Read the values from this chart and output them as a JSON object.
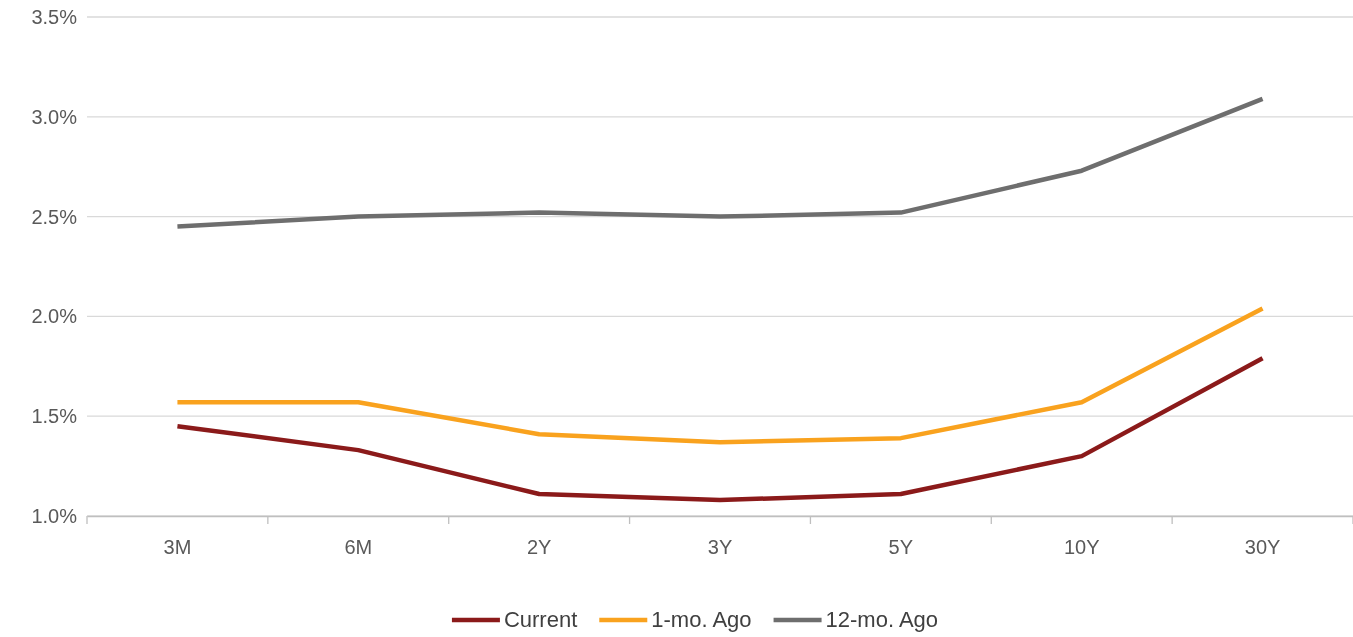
{
  "chart_data": {
    "type": "line",
    "categories": [
      "3M",
      "6M",
      "2Y",
      "3Y",
      "5Y",
      "10Y",
      "30Y"
    ],
    "series": [
      {
        "name": "Current",
        "color": "#8b1a1a",
        "values": [
          1.45,
          1.33,
          1.11,
          1.08,
          1.11,
          1.3,
          1.79
        ]
      },
      {
        "name": "1-mo. Ago",
        "color": "#f9a21e",
        "values": [
          1.57,
          1.57,
          1.41,
          1.37,
          1.39,
          1.57,
          2.04
        ]
      },
      {
        "name": "12-mo. Ago",
        "color": "#6e6e6e",
        "values": [
          2.45,
          2.5,
          2.52,
          2.5,
          2.52,
          2.73,
          3.09
        ]
      }
    ],
    "ylim": [
      1.0,
      3.5
    ],
    "yticks": [
      {
        "value": 1.0,
        "label": "1.0%"
      },
      {
        "value": 1.5,
        "label": "1.5%"
      },
      {
        "value": 2.0,
        "label": "2.0%"
      },
      {
        "value": 2.5,
        "label": "2.5%"
      },
      {
        "value": 3.0,
        "label": "3.0%"
      },
      {
        "value": 3.5,
        "label": "3.5%"
      }
    ],
    "grid": "y",
    "legend": "bottom",
    "marker": "none",
    "line_style": "solid"
  }
}
